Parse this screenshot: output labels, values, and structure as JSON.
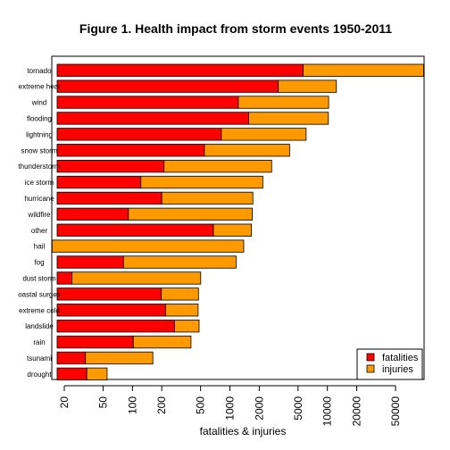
{
  "chart_data": {
    "type": "bar",
    "orientation": "horizontal",
    "stacked": true,
    "x_scale": "log",
    "title": "Figure 1. Health impact from storm events 1950-2011",
    "xlabel": "fatalities & injuries",
    "ylabel": "",
    "xlim": [
      15,
      100000
    ],
    "x_ticks": [
      20,
      50,
      100,
      200,
      500,
      1000,
      2000,
      5000,
      10000,
      20000,
      50000
    ],
    "x_tick_labels": [
      "20",
      "50",
      "100",
      "200",
      "500",
      "1000",
      "2000",
      "5000",
      "10000",
      "20000",
      "50000"
    ],
    "categories": [
      "tornado",
      "extreme heat",
      "wind",
      "flooding",
      "lightning",
      "snow storm",
      "thunderstorm",
      "ice storm",
      "hurricane",
      "wildfire",
      "other",
      "hail",
      "fog",
      "dust storm",
      "coastal surges",
      "extreme cold",
      "landslide",
      "rain",
      "tsunami",
      "drought"
    ],
    "category_labels": [
      "tornado",
      "extreme heat",
      "wind",
      "flooding",
      "lightning",
      "snow storm",
      "thunderstorm",
      "ice storm",
      "hurricane",
      "wildfire",
      "other",
      "hail",
      "fog",
      "dust storm",
      "oastal surges",
      "extreme cold",
      "landslide",
      "rain",
      "tsunami",
      "drought"
    ],
    "series": [
      {
        "name": "fatalities",
        "color": "#ff0000",
        "values": [
          5650,
          3138,
          1220,
          1554,
          817,
          547,
          211,
          122,
          200,
          91,
          677,
          15,
          81,
          24,
          198,
          219,
          270,
          102,
          33,
          34
        ]
      },
      {
        "name": "injuries",
        "color": "#ff9900",
        "values": [
          91407,
          9224,
          9078,
          8674,
          5230,
          3550,
          2470,
          2054,
          1520,
          1606,
          987,
          1371,
          1077,
          478,
          278,
          253,
          213,
          297,
          129,
          21
        ]
      }
    ],
    "totals": [
      97057,
      12362,
      10298,
      10228,
      6047,
      4097,
      2681,
      2176,
      1720,
      1697,
      1664,
      1386,
      1158,
      502,
      476,
      472,
      483,
      399,
      162,
      55
    ],
    "legend_position": "bottom-right",
    "grid": false
  }
}
